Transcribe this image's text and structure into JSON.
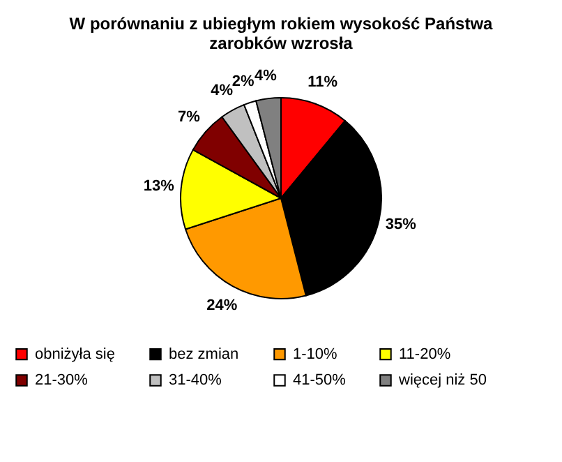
{
  "chart_data": {
    "type": "pie",
    "title": "W porównaniu z ubiegłym rokiem wysokość Państwa\nzarobków wzrosła",
    "categories": [
      "obniżyła się",
      "bez zmian",
      "1-10%",
      "11-20%",
      "21-30%",
      "31-40%",
      "41-50%",
      "więcej niż 50"
    ],
    "values": [
      11,
      35,
      24,
      13,
      7,
      4,
      2,
      4
    ],
    "value_labels": [
      "11%",
      "35%",
      "24%",
      "13%",
      "7%",
      "4%",
      "2%",
      "4%"
    ],
    "colors": [
      "#ff0000",
      "#000000",
      "#ff9900",
      "#ffff00",
      "#800000",
      "#c0c0c0",
      "#ffffff",
      "#808080"
    ],
    "legend": "bottom"
  }
}
